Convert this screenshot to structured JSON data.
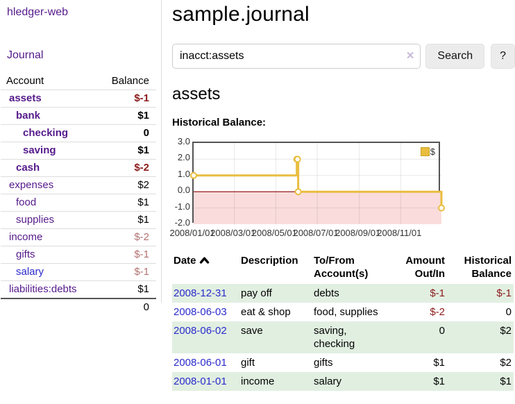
{
  "colors": {
    "link_purple": "#551a8b",
    "link_blue": "#2a2acc",
    "negative_strong": "#8c1a1a",
    "negative_muted": "#b37272",
    "row_stripe_green": "#e1efe1",
    "chart_line_gold": "#e9bd3e",
    "chart_negative_region": "#fadcdc",
    "chart_zero_line": "#8b0000"
  },
  "sidebar": {
    "brand": "hledger-web",
    "journal_link": "Journal",
    "accounts_table": {
      "headers": {
        "account": "Account",
        "balance": "Balance"
      },
      "rows": [
        {
          "account": "assets",
          "depth": 1,
          "bold": true,
          "balance": "$-1",
          "balance_style": "neg-strong",
          "link_color": "purple"
        },
        {
          "account": "bank",
          "depth": 2,
          "bold": true,
          "balance": "$1",
          "balance_style": "normal",
          "link_color": "purple"
        },
        {
          "account": "checking",
          "depth": 3,
          "bold": true,
          "balance": "0",
          "balance_style": "normal",
          "link_color": "purple"
        },
        {
          "account": "saving",
          "depth": 3,
          "bold": true,
          "balance": "$1",
          "balance_style": "normal",
          "link_color": "purple"
        },
        {
          "account": "cash",
          "depth": 2,
          "bold": true,
          "balance": "$-2",
          "balance_style": "neg-strong",
          "link_color": "purple"
        },
        {
          "account": "expenses",
          "depth": 1,
          "bold": false,
          "balance": "$2",
          "balance_style": "normal",
          "link_color": "purple"
        },
        {
          "account": "food",
          "depth": 2,
          "bold": false,
          "balance": "$1",
          "balance_style": "normal",
          "link_color": "purple"
        },
        {
          "account": "supplies",
          "depth": 2,
          "bold": false,
          "balance": "$1",
          "balance_style": "normal",
          "link_color": "purple"
        },
        {
          "account": "income",
          "depth": 1,
          "bold": false,
          "balance": "$-2",
          "balance_style": "neg-muted",
          "link_color": "purple"
        },
        {
          "account": "gifts",
          "depth": 2,
          "bold": false,
          "balance": "$-1",
          "balance_style": "neg-muted",
          "link_color": "purple"
        },
        {
          "account": "salary",
          "depth": 2,
          "bold": false,
          "balance": "$-1",
          "balance_style": "neg-muted",
          "link_color": "blue"
        },
        {
          "account": "liabilities:debts",
          "depth": 1,
          "bold": false,
          "balance": "$1",
          "balance_style": "normal",
          "link_color": "purple"
        }
      ],
      "total": "0"
    }
  },
  "header": {
    "title": "sample.journal"
  },
  "search": {
    "value": "inacct:assets",
    "clear_icon": "✕",
    "search_button": "Search",
    "help_button": "?"
  },
  "account_page": {
    "title": "assets",
    "chart_label": "Historical Balance:"
  },
  "chart_data": {
    "type": "line",
    "step": true,
    "title": "Historical Balance:",
    "series": [
      {
        "name": "$",
        "color": "#e9bd3e",
        "points": [
          [
            "2008-01-01",
            1
          ],
          [
            "2008-06-01",
            2
          ],
          [
            "2008-06-02",
            2
          ],
          [
            "2008-06-03",
            0
          ],
          [
            "2008-12-31",
            -1
          ]
        ]
      }
    ],
    "x_range": [
      "2008-01-01",
      "2008-12-31"
    ],
    "ylim": [
      -2,
      3
    ],
    "y_ticks": [
      "3.0",
      "2.0",
      "1.0",
      "0.0",
      "-1.0",
      "-2.0"
    ],
    "x_ticks": [
      "2008/01/01",
      "2008/03/01",
      "2008/05/01",
      "2008/07/01",
      "2008/09/01",
      "2008/11/01"
    ],
    "grid": true,
    "legend_position": "top-right",
    "legend_label": "$",
    "negative_region_color": "#fadcdc",
    "zero_line_color": "#8b0000"
  },
  "register_table": {
    "headers": {
      "date": "Date",
      "description": "Description",
      "accounts": "To/From Account(s)",
      "amount": "Amount Out/In",
      "balance": "Historical Balance"
    },
    "rows": [
      {
        "date": "2008-12-31",
        "description": "pay off",
        "accounts": "debts",
        "amount": "$-1",
        "balance": "$-1",
        "amount_negative": true,
        "balance_negative": true
      },
      {
        "date": "2008-06-03",
        "description": "eat & shop",
        "accounts": "food, supplies",
        "amount": "$-2",
        "balance": "0",
        "amount_negative": true,
        "balance_negative": false
      },
      {
        "date": "2008-06-02",
        "description": "save",
        "accounts": "saving, checking",
        "amount": "0",
        "balance": "$2",
        "amount_negative": false,
        "balance_negative": false
      },
      {
        "date": "2008-06-01",
        "description": "gift",
        "accounts": "gifts",
        "amount": "$1",
        "balance": "$2",
        "amount_negative": false,
        "balance_negative": false
      },
      {
        "date": "2008-01-01",
        "description": "income",
        "accounts": "salary",
        "amount": "$1",
        "balance": "$1",
        "amount_negative": false,
        "balance_negative": false
      }
    ]
  }
}
